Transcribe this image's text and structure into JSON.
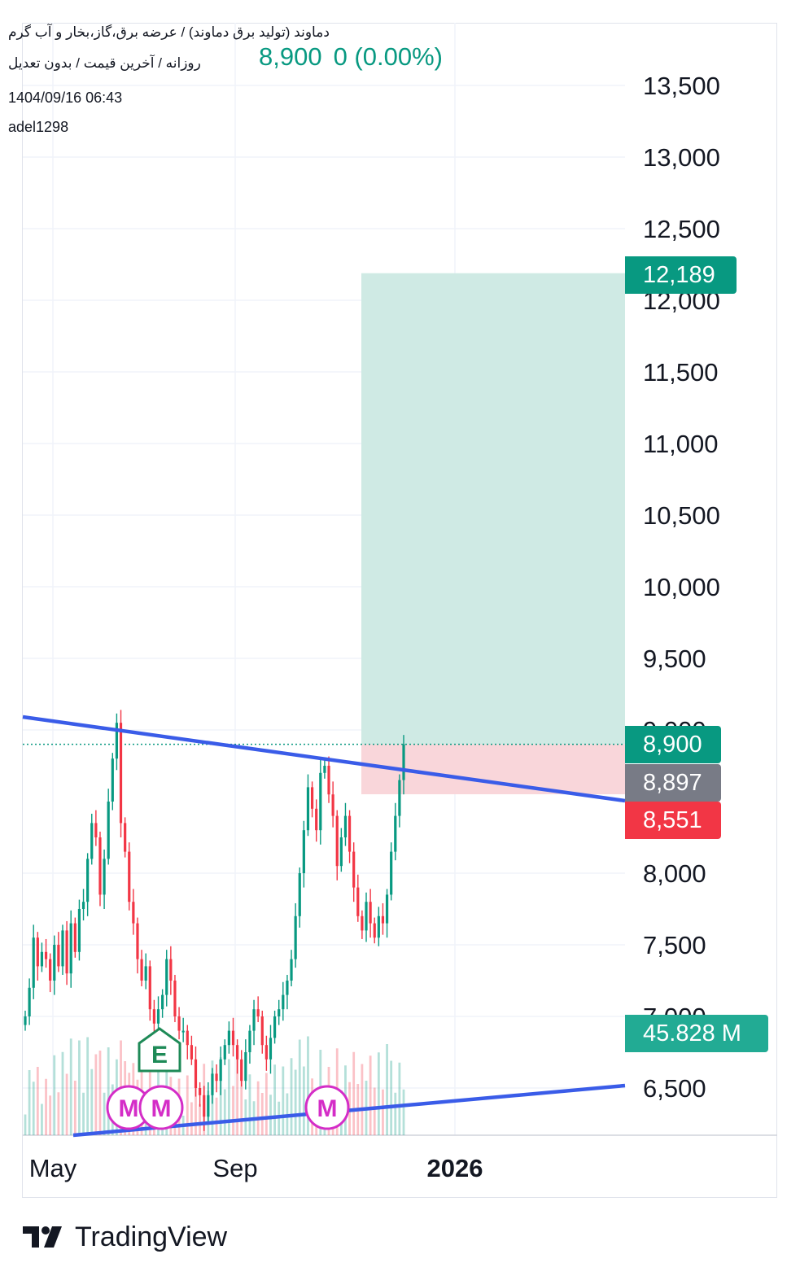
{
  "header": {
    "title": "دماوند (تولید برق دماوند) / عرضه برق،گاز،بخار و آب گرم",
    "subtitle": "روزانه / آخرین قیمت / بدون تعدیل",
    "price": "8,900",
    "change": "0 (0.00%)",
    "date": "1404/09/16 06:43",
    "user": "adel1298"
  },
  "badges": {
    "target": "12,189",
    "last": "8,900",
    "avg": "8,897",
    "stop": "8,551",
    "volume": "45.828 M"
  },
  "colors": {
    "up": "#089981",
    "down": "#f23645",
    "trendline": "#3a5ce8",
    "profit_zone": "#cfeae4",
    "loss_zone": "#f9d6da",
    "marker_m": "#d42dc7",
    "marker_e": "#1e8a57",
    "avg_badge": "#787b86",
    "volume_badge": "#22ab94"
  },
  "chart_data": {
    "type": "candlestick",
    "price_axis": {
      "ticks": [
        "13,500",
        "13,000",
        "12,500",
        "12,000",
        "11,500",
        "11,000",
        "10,500",
        "10,000",
        "9,500",
        "9,000",
        "8,000",
        "7,500",
        "7,000",
        "6,500"
      ],
      "range": [
        6200,
        13800
      ]
    },
    "time_axis": {
      "ticks": [
        "May",
        "Sep",
        "2026"
      ]
    },
    "trendlines": [
      {
        "name": "upper",
        "from": {
          "x": "Apr 2025",
          "y": 9110
        },
        "to": {
          "x": "Jan 2026",
          "y": 8500
        }
      },
      {
        "name": "lower",
        "from": {
          "x": "May 2025",
          "y": 6200
        },
        "to": {
          "x": "Jan 2026",
          "y": 6500
        }
      }
    ],
    "position": {
      "entry": 8900,
      "target": 12189,
      "stop": 8551
    },
    "last_price": 8900,
    "volume_last": "45.828 M",
    "event_markers": [
      {
        "type": "E",
        "label": "E",
        "x": "Jun 2025"
      },
      {
        "type": "M",
        "label": "M",
        "x": "Jun 2025"
      },
      {
        "type": "M",
        "label": "M",
        "x": "Jun 2025"
      },
      {
        "type": "M",
        "label": "M",
        "x": "Oct 2025"
      }
    ],
    "series": [
      {
        "values": [
          7000,
          7200,
          7550,
          7350,
          7450,
          7400,
          7250,
          7500,
          7350,
          7600,
          7300,
          7650,
          7450,
          7750,
          7800,
          8100,
          8350,
          8250,
          7850,
          8100,
          8500,
          8800,
          9050,
          8350,
          8150,
          7800,
          7650,
          7400,
          7250,
          7350,
          7050,
          6950,
          7050,
          7150,
          7400,
          7250,
          7000,
          6900,
          6900,
          6800,
          6700,
          6500,
          6450,
          6300,
          6450,
          6600,
          6550,
          6700,
          6800,
          6900,
          6800,
          6700,
          6550,
          6750,
          6900,
          7050,
          7000,
          6800,
          6700,
          6850,
          7000,
          7050,
          7150,
          7250,
          7400,
          7700,
          8000,
          8300,
          8600,
          8450,
          8300,
          8700,
          8750,
          8550,
          8400,
          8050,
          8250,
          8400,
          8150,
          7900,
          7700,
          7600,
          7800,
          7650,
          7550,
          7700,
          7650,
          7850,
          8150,
          8400,
          8650,
          8900
        ]
      }
    ]
  }
}
